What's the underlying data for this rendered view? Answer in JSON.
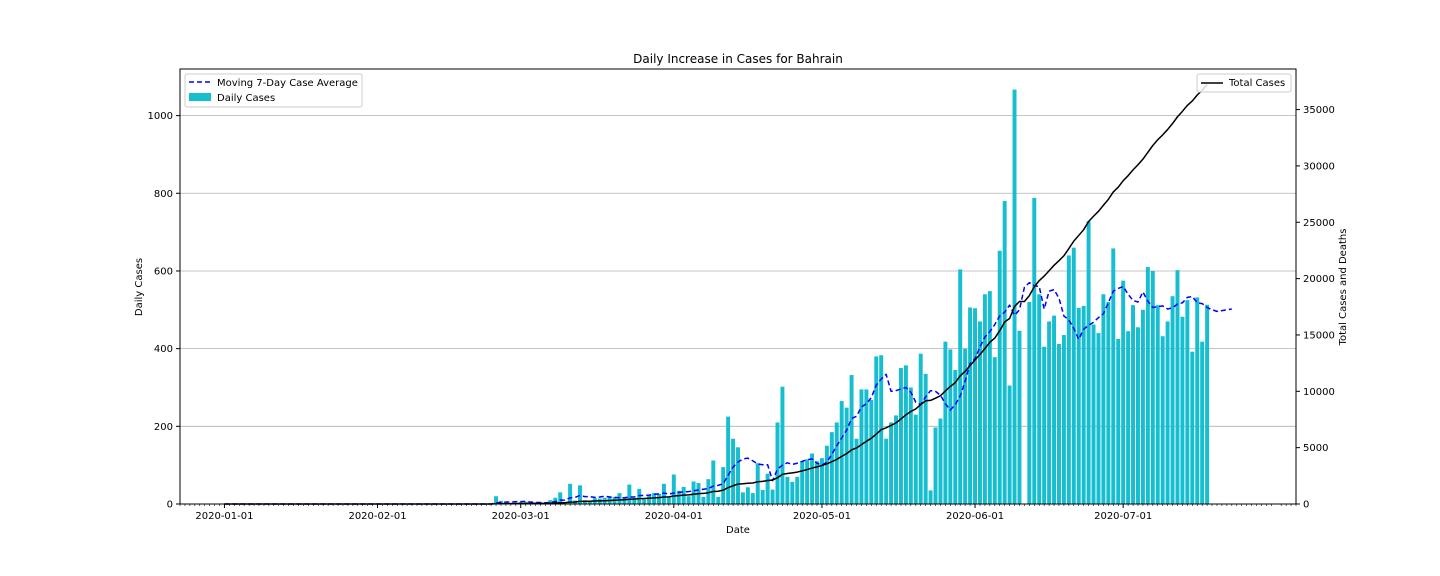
{
  "chart_data": {
    "type": "bar",
    "title": "Daily Increase in Cases for Bahrain",
    "xlabel": "Date",
    "ylabel": "Daily Cases",
    "y2label": "Total Cases and Deaths",
    "ylim": [
      0,
      1120
    ],
    "y2lim": [
      0,
      38600
    ],
    "yticks": [
      0,
      200,
      400,
      600,
      800,
      1000
    ],
    "y2ticks": [
      0,
      5000,
      10000,
      15000,
      20000,
      25000,
      30000,
      35000
    ],
    "xticks": [
      "2020-01-01",
      "2020-02-01",
      "2020-03-01",
      "2020-04-01",
      "2020-05-01",
      "2020-06-01",
      "2020-07-01"
    ],
    "x_start": "2020-01-01",
    "x_range": [
      "2019-12-23",
      "2020-08-05"
    ],
    "grid": "horizontal",
    "legend_left": {
      "placement": "upper-left",
      "entries": [
        "Moving 7-Day Case Average",
        "Daily Cases"
      ]
    },
    "legend_right": {
      "placement": "upper-right",
      "entries": [
        "Total Cases"
      ]
    },
    "colors": {
      "bars": "#17becf",
      "moving_average": "#0000ff",
      "total": "#000000",
      "grid": "#b0b0b0"
    },
    "series": [
      {
        "name": "Daily Cases",
        "type": "bar",
        "axis": "left",
        "x_start": "2020-01-01",
        "values": [
          0,
          0,
          0,
          0,
          0,
          0,
          0,
          0,
          0,
          0,
          0,
          0,
          0,
          0,
          0,
          0,
          0,
          0,
          0,
          0,
          0,
          0,
          0,
          0,
          0,
          0,
          0,
          0,
          0,
          0,
          0,
          0,
          0,
          0,
          0,
          0,
          0,
          0,
          0,
          0,
          0,
          0,
          0,
          0,
          0,
          0,
          0,
          0,
          0,
          0,
          0,
          0,
          0,
          0,
          0,
          20,
          8,
          6,
          3,
          2,
          5,
          6,
          3,
          4,
          1,
          2,
          10,
          16,
          30,
          3,
          52,
          9,
          48,
          10,
          8,
          15,
          14,
          16,
          20,
          18,
          28,
          16,
          50,
          15,
          39,
          12,
          22,
          28,
          26,
          52,
          17,
          76,
          34,
          44,
          20,
          58,
          54,
          18,
          64,
          112,
          18,
          95,
          225,
          168,
          146,
          30,
          43,
          28,
          105,
          36,
          78,
          37,
          210,
          302,
          70,
          57,
          70,
          110,
          115,
          130,
          110,
          118,
          150,
          185,
          210,
          265,
          248,
          332,
          168,
          295,
          295,
          268,
          380,
          383,
          168,
          210,
          228,
          350,
          357,
          300,
          230,
          387,
          335,
          35,
          197,
          220,
          418,
          398,
          345,
          604,
          400,
          506,
          504,
          470,
          540,
          548,
          378,
          652,
          780,
          305,
          1067,
          446,
          0,
          520,
          788,
          540,
          405,
          470,
          485,
          412,
          435,
          640,
          660,
          505,
          510,
          728,
          462,
          440,
          540,
          520,
          658,
          425,
          575,
          445,
          512,
          455,
          500,
          610,
          600,
          512,
          432,
          470,
          535,
          602,
          482,
          525,
          392,
          532,
          418,
          513
        ]
      },
      {
        "name": "Moving 7-Day Case Average",
        "type": "line",
        "axis": "left",
        "x_start": "2020-01-01",
        "values": [
          0,
          0,
          0,
          0,
          0,
          0,
          0,
          0,
          0,
          0,
          0,
          0,
          0,
          0,
          0,
          0,
          0,
          0,
          0,
          0,
          0,
          0,
          0,
          0,
          0,
          0,
          0,
          0,
          0,
          0,
          0,
          0,
          0,
          0,
          0,
          0,
          0,
          0,
          0,
          0,
          0,
          0,
          0,
          0,
          0,
          0,
          0,
          0,
          0,
          0,
          0,
          0,
          0,
          0,
          0,
          3,
          4,
          5,
          5,
          6,
          6,
          7,
          5,
          4,
          4,
          3,
          4,
          6,
          10,
          10,
          16,
          17,
          22,
          19,
          19,
          17,
          18,
          20,
          18,
          17,
          16,
          16,
          18,
          18,
          22,
          22,
          23,
          25,
          26,
          28,
          26,
          28,
          30,
          31,
          32,
          34,
          36,
          38,
          40,
          46,
          48,
          52,
          74,
          95,
          108,
          116,
          118,
          111,
          103,
          101,
          101,
          60,
          90,
          100,
          106,
          102,
          105,
          110,
          114,
          116,
          105,
          100,
          108,
          128,
          150,
          170,
          190,
          220,
          226,
          250,
          258,
          274,
          306,
          322,
          334,
          290,
          292,
          296,
          300,
          288,
          262,
          256,
          276,
          292,
          290,
          280,
          258,
          242,
          256,
          278,
          316,
          362,
          374,
          404,
          430,
          444,
          462,
          484,
          494,
          512,
          486,
          500,
          558,
          570,
          562,
          560,
          502,
          548,
          552,
          530,
          484,
          474,
          452,
          424,
          450,
          460,
          468,
          480,
          490,
          518,
          548,
          555,
          560,
          540,
          524,
          520,
          546,
          522,
          506,
          508,
          510,
          502,
          505,
          515,
          518,
          532,
          534,
          518,
          516,
          506,
          500,
          496,
          498,
          500,
          502
        ]
      },
      {
        "name": "Total Cases",
        "type": "line",
        "axis": "right",
        "x_start": "2020-01-01",
        "values": [
          0,
          0,
          0,
          0,
          0,
          0,
          0,
          0,
          0,
          0,
          0,
          0,
          0,
          0,
          0,
          0,
          0,
          0,
          0,
          0,
          0,
          0,
          0,
          0,
          0,
          0,
          0,
          0,
          0,
          0,
          0,
          0,
          0,
          0,
          0,
          0,
          0,
          0,
          0,
          0,
          0,
          0,
          0,
          0,
          0,
          0,
          0,
          0,
          0,
          0,
          0,
          0,
          0,
          0,
          0,
          20,
          28,
          34,
          37,
          39,
          44,
          50,
          53,
          57,
          58,
          60,
          70,
          86,
          116,
          119,
          171,
          180,
          228,
          238,
          246,
          261,
          275,
          291,
          311,
          329,
          357,
          373,
          423,
          438,
          477,
          489,
          511,
          539,
          565,
          617,
          634,
          710,
          744,
          788,
          808,
          866,
          920,
          938,
          1002,
          1114,
          1132,
          1227,
          1452,
          1620,
          1766,
          1796,
          1839,
          1867,
          1972,
          2008,
          2086,
          2123,
          2333,
          2635,
          2705,
          2762,
          2832,
          2942,
          3057,
          3187,
          3297,
          3415,
          3565,
          3750,
          3960,
          4225,
          4473,
          4805,
          4973,
          5268,
          5563,
          5831,
          6211,
          6594,
          6762,
          6972,
          7200,
          7550,
          7907,
          8207,
          8437,
          8824,
          9159,
          9194,
          9391,
          9611,
          10029,
          10427,
          10772,
          11376,
          11776,
          12282,
          12786,
          13256,
          13796,
          14344,
          14722,
          15374,
          16154,
          16459,
          17526,
          17972,
          17972,
          18492,
          19280,
          19820,
          20225,
          20695,
          21180,
          21592,
          22027,
          22667,
          23327,
          23832,
          24342,
          25070,
          25532,
          25972,
          26512,
          27032,
          27690,
          28115,
          28690,
          29135,
          29647,
          30102,
          30602,
          31212,
          31812,
          32324,
          32756,
          33226,
          33761,
          34363,
          34845,
          35370,
          35762,
          36294,
          36712,
          37225
        ]
      }
    ]
  }
}
